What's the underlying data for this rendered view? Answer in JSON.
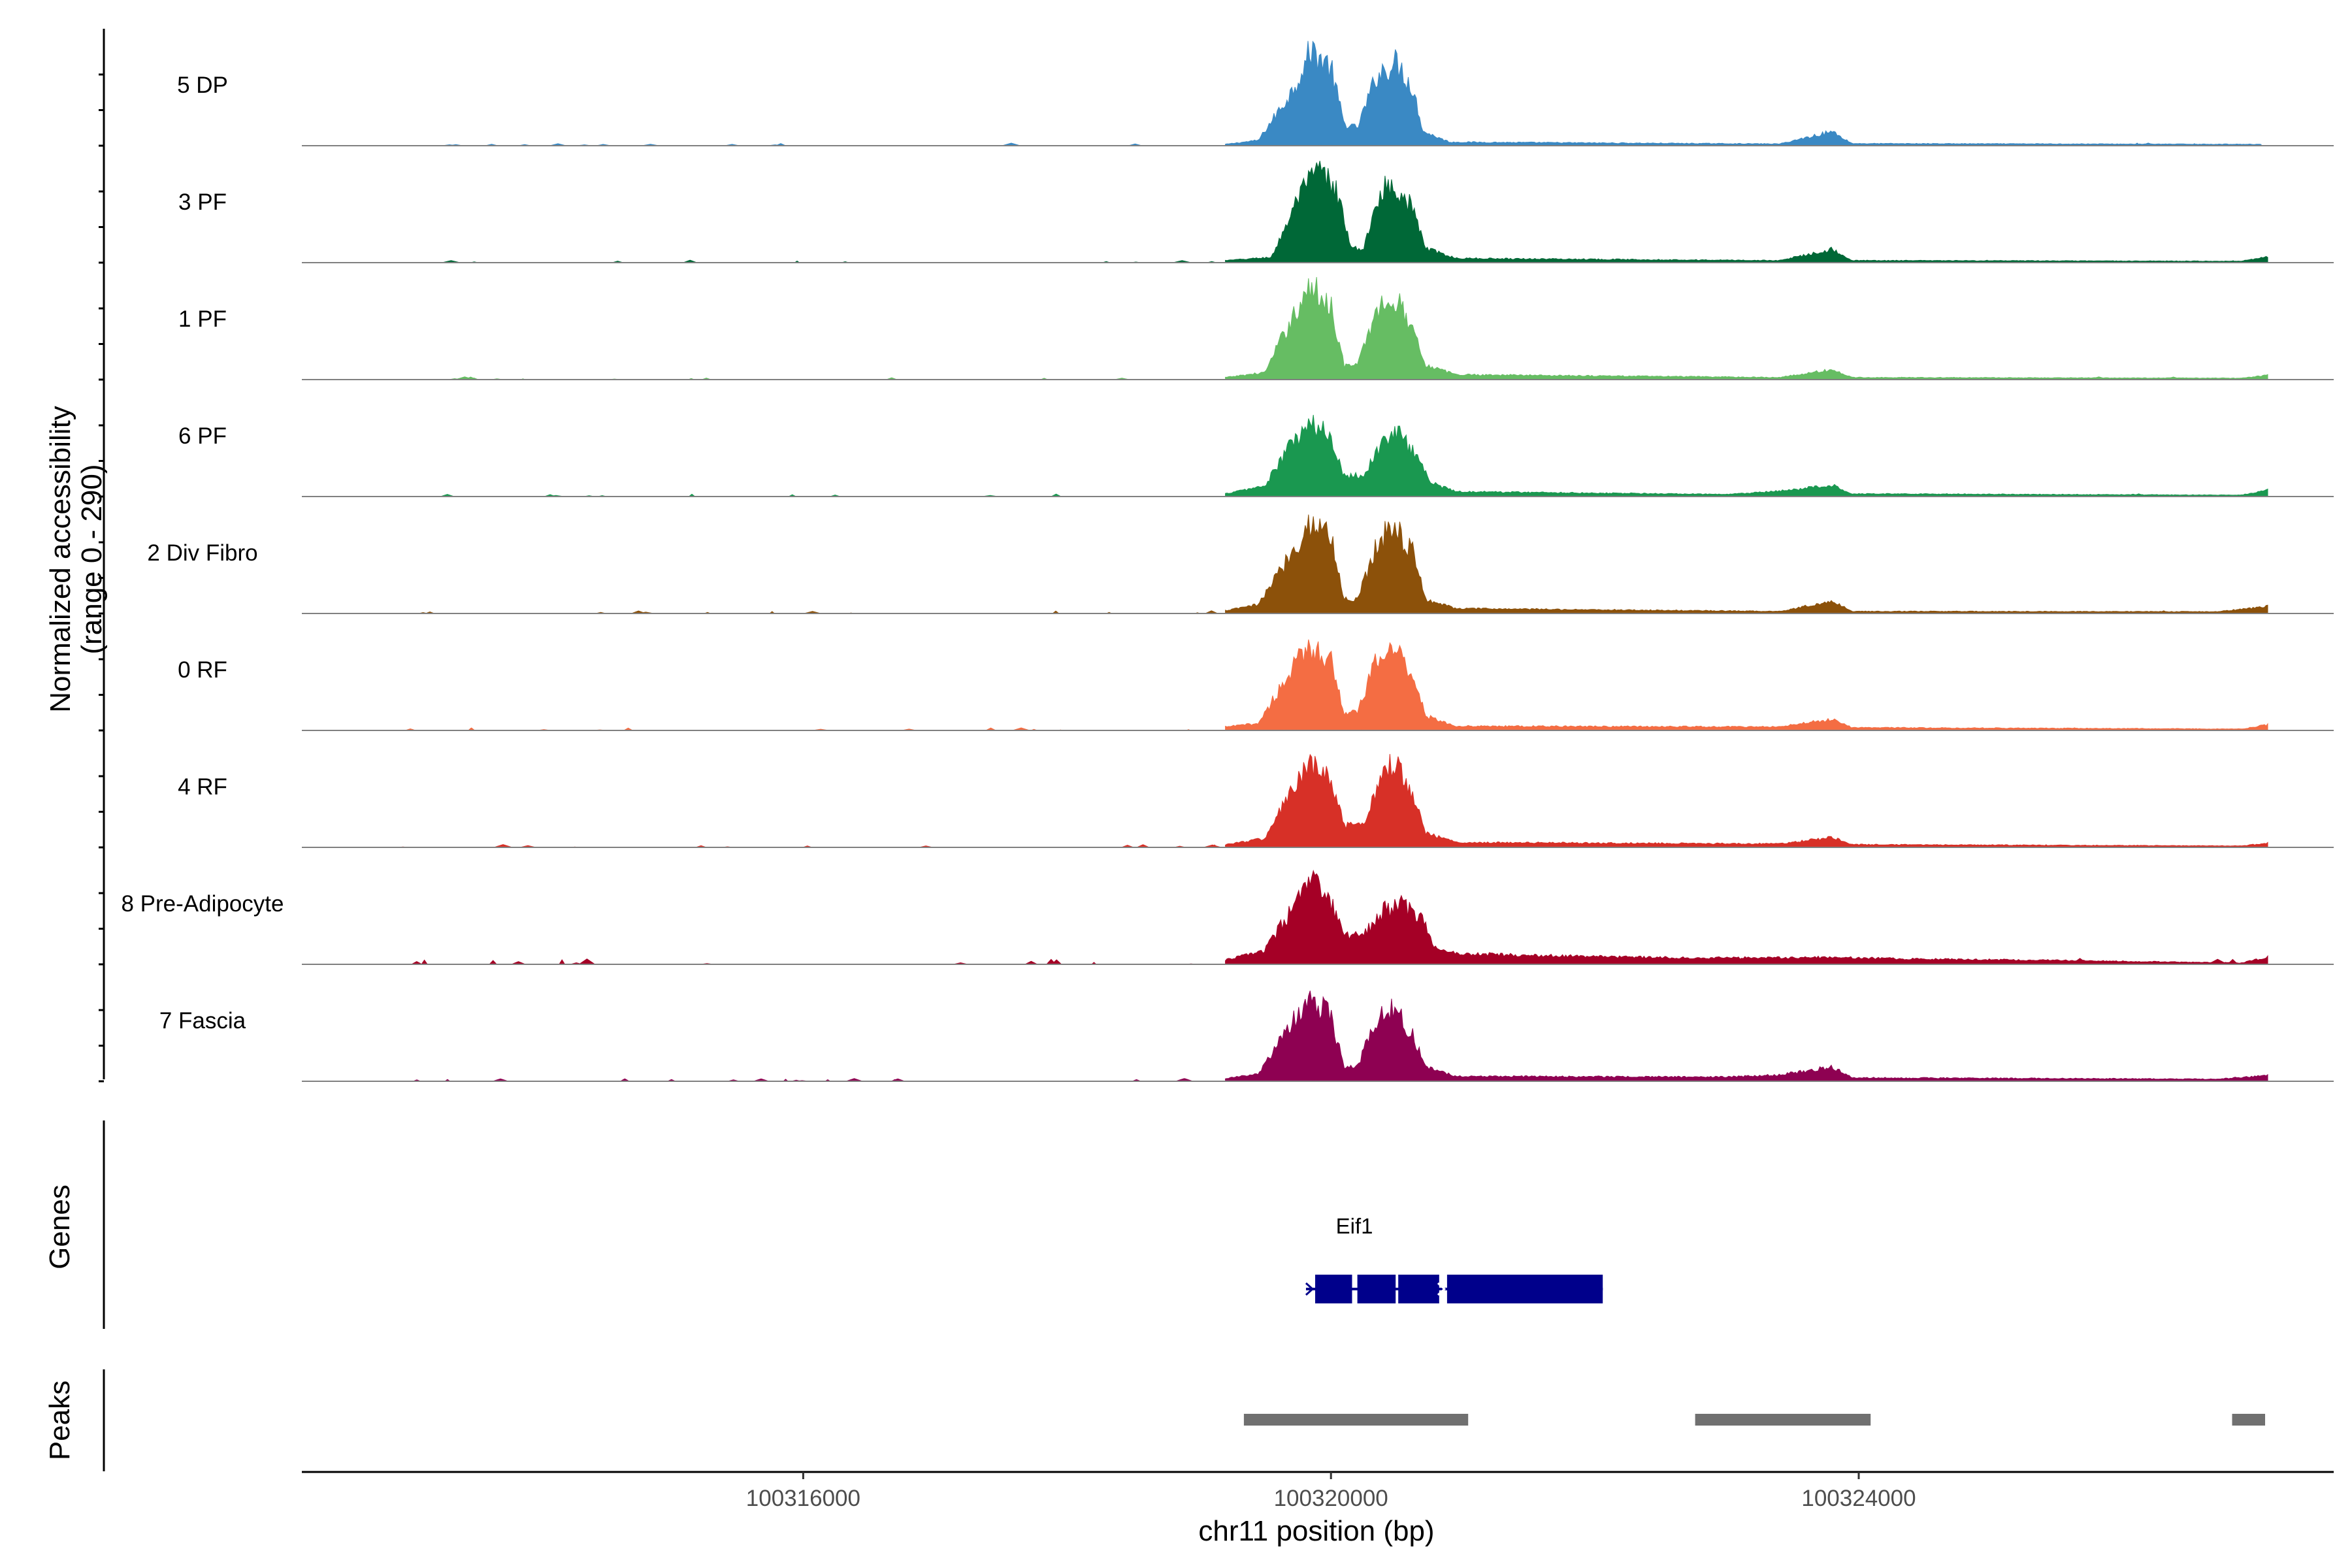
{
  "chart_data": {
    "type": "area",
    "region": "chr11",
    "x_range": [
      100312200,
      100327600
    ],
    "xlabel": "chr11 position (bp)",
    "x_ticks": [
      {
        "value": 100316000,
        "label": "100316000"
      },
      {
        "value": 100320000,
        "label": "100320000"
      },
      {
        "value": 100324000,
        "label": "100324000"
      }
    ],
    "ylabel_line1": "Normalized accessibility",
    "ylabel_line2": "(range 0 - 290)",
    "ylim": [
      0,
      290
    ],
    "tracks": [
      {
        "name": "5 DP",
        "color": "#3A89C4",
        "profile": [
          [
            100319200,
            4
          ],
          [
            100319450,
            15
          ],
          [
            100319700,
            150
          ],
          [
            100319850,
            270
          ],
          [
            100320000,
            220
          ],
          [
            100320100,
            60
          ],
          [
            100320200,
            50
          ],
          [
            100320350,
            200
          ],
          [
            100320500,
            235
          ],
          [
            100320620,
            160
          ],
          [
            100320700,
            40
          ],
          [
            100320900,
            10
          ],
          [
            100323400,
            5
          ],
          [
            100323800,
            40
          ],
          [
            100323950,
            6
          ],
          [
            100327050,
            4
          ]
        ]
      },
      {
        "name": "3 PF",
        "color": "#006837",
        "profile": [
          [
            100319200,
            6
          ],
          [
            100319550,
            15
          ],
          [
            100319750,
            180
          ],
          [
            100319900,
            260
          ],
          [
            100320050,
            200
          ],
          [
            100320150,
            40
          ],
          [
            100320250,
            40
          ],
          [
            100320380,
            210
          ],
          [
            100320500,
            215
          ],
          [
            100320620,
            150
          ],
          [
            100320720,
            40
          ],
          [
            100320950,
            12
          ],
          [
            100323400,
            6
          ],
          [
            100323800,
            38
          ],
          [
            100323950,
            6
          ],
          [
            100326900,
            4
          ],
          [
            100327100,
            18
          ]
        ]
      },
      {
        "name": "1 PF",
        "color": "#66BD63",
        "profile": [
          [
            100319200,
            6
          ],
          [
            100319500,
            20
          ],
          [
            100319700,
            170
          ],
          [
            100319850,
            260
          ],
          [
            100320000,
            210
          ],
          [
            100320100,
            40
          ],
          [
            100320200,
            40
          ],
          [
            100320350,
            200
          ],
          [
            100320480,
            230
          ],
          [
            100320620,
            150
          ],
          [
            100320720,
            40
          ],
          [
            100320950,
            14
          ],
          [
            100323400,
            6
          ],
          [
            100323800,
            28
          ],
          [
            100323950,
            6
          ],
          [
            100326900,
            4
          ],
          [
            100327100,
            12
          ]
        ]
      },
      {
        "name": "6 PF",
        "color": "#1A9850",
        "profile": [
          [
            100319200,
            8
          ],
          [
            100319500,
            30
          ],
          [
            100319700,
            150
          ],
          [
            100319850,
            200
          ],
          [
            100320000,
            170
          ],
          [
            100320100,
            60
          ],
          [
            100320250,
            60
          ],
          [
            100320400,
            160
          ],
          [
            100320500,
            180
          ],
          [
            100320650,
            120
          ],
          [
            100320750,
            40
          ],
          [
            100320950,
            14
          ],
          [
            100323000,
            6
          ],
          [
            100323400,
            15
          ],
          [
            100323800,
            32
          ],
          [
            100323950,
            8
          ],
          [
            100326900,
            4
          ],
          [
            100327100,
            18
          ]
        ]
      },
      {
        "name": "2 Div Fibro",
        "color": "#8C510A",
        "profile": [
          [
            100319200,
            8
          ],
          [
            100319450,
            25
          ],
          [
            100319700,
            170
          ],
          [
            100319850,
            260
          ],
          [
            100320000,
            220
          ],
          [
            100320100,
            40
          ],
          [
            100320200,
            40
          ],
          [
            100320350,
            200
          ],
          [
            100320480,
            250
          ],
          [
            100320620,
            170
          ],
          [
            100320720,
            40
          ],
          [
            100320950,
            14
          ],
          [
            100323400,
            6
          ],
          [
            100323800,
            35
          ],
          [
            100323950,
            6
          ],
          [
            100326700,
            5
          ],
          [
            100327100,
            20
          ]
        ]
      },
      {
        "name": "0 RF",
        "color": "#F46D43",
        "profile": [
          [
            100319200,
            10
          ],
          [
            100319450,
            20
          ],
          [
            100319700,
            170
          ],
          [
            100319850,
            240
          ],
          [
            100320000,
            200
          ],
          [
            100320100,
            50
          ],
          [
            100320200,
            50
          ],
          [
            100320350,
            200
          ],
          [
            100320480,
            235
          ],
          [
            100320620,
            160
          ],
          [
            100320720,
            40
          ],
          [
            100320950,
            12
          ],
          [
            100323400,
            10
          ],
          [
            100323800,
            32
          ],
          [
            100323950,
            8
          ],
          [
            100326900,
            4
          ],
          [
            100327100,
            16
          ]
        ]
      },
      {
        "name": "4 RF",
        "color": "#D73027",
        "profile": [
          [
            100319200,
            8
          ],
          [
            100319500,
            25
          ],
          [
            100319700,
            160
          ],
          [
            100319850,
            230
          ],
          [
            100320000,
            190
          ],
          [
            100320100,
            60
          ],
          [
            100320250,
            60
          ],
          [
            100320380,
            210
          ],
          [
            100320480,
            240
          ],
          [
            100320620,
            160
          ],
          [
            100320720,
            40
          ],
          [
            100320950,
            14
          ],
          [
            100323400,
            10
          ],
          [
            100323800,
            28
          ],
          [
            100323950,
            8
          ],
          [
            100326900,
            4
          ],
          [
            100327100,
            12
          ]
        ]
      },
      {
        "name": "8 Pre-Adipocyte",
        "color": "#A50026",
        "profile": [
          [
            100319200,
            12
          ],
          [
            100319500,
            40
          ],
          [
            100319700,
            150
          ],
          [
            100319850,
            240
          ],
          [
            100320000,
            170
          ],
          [
            100320100,
            80
          ],
          [
            100320250,
            90
          ],
          [
            100320400,
            150
          ],
          [
            100320550,
            170
          ],
          [
            100320700,
            120
          ],
          [
            100320800,
            40
          ],
          [
            100321000,
            30
          ],
          [
            100321500,
            25
          ],
          [
            100322300,
            20
          ],
          [
            100323000,
            18
          ],
          [
            100323800,
            20
          ],
          [
            100324400,
            15
          ],
          [
            100325300,
            12
          ],
          [
            100326900,
            4
          ],
          [
            100327100,
            20
          ]
        ]
      },
      {
        "name": "7 Fascia",
        "color": "#8E0152",
        "profile": [
          [
            100319200,
            8
          ],
          [
            100319450,
            20
          ],
          [
            100319700,
            160
          ],
          [
            100319850,
            235
          ],
          [
            100320000,
            180
          ],
          [
            100320100,
            40
          ],
          [
            100320200,
            40
          ],
          [
            100320350,
            180
          ],
          [
            100320480,
            200
          ],
          [
            100320620,
            130
          ],
          [
            100320720,
            40
          ],
          [
            100320950,
            14
          ],
          [
            100323000,
            12
          ],
          [
            100323400,
            18
          ],
          [
            100323800,
            40
          ],
          [
            100323950,
            10
          ],
          [
            100326700,
            6
          ],
          [
            100327100,
            16
          ]
        ]
      }
    ],
    "genes": {
      "title": "Genes",
      "items": [
        {
          "name": "Eif1",
          "strand": "+",
          "start": 100319880,
          "end": 100322060,
          "exons": [
            [
              100319880,
              100320160
            ],
            [
              100320200,
              100320490
            ],
            [
              100320510,
              100320820
            ],
            [
              100320880,
              100322060
            ]
          ],
          "color": "#00008B"
        }
      ]
    },
    "peaks": {
      "title": "Peaks",
      "color": "#707070",
      "items": [
        [
          100319340,
          100321040
        ],
        [
          100322760,
          100324090
        ],
        [
          100326830,
          100327080
        ]
      ]
    }
  }
}
